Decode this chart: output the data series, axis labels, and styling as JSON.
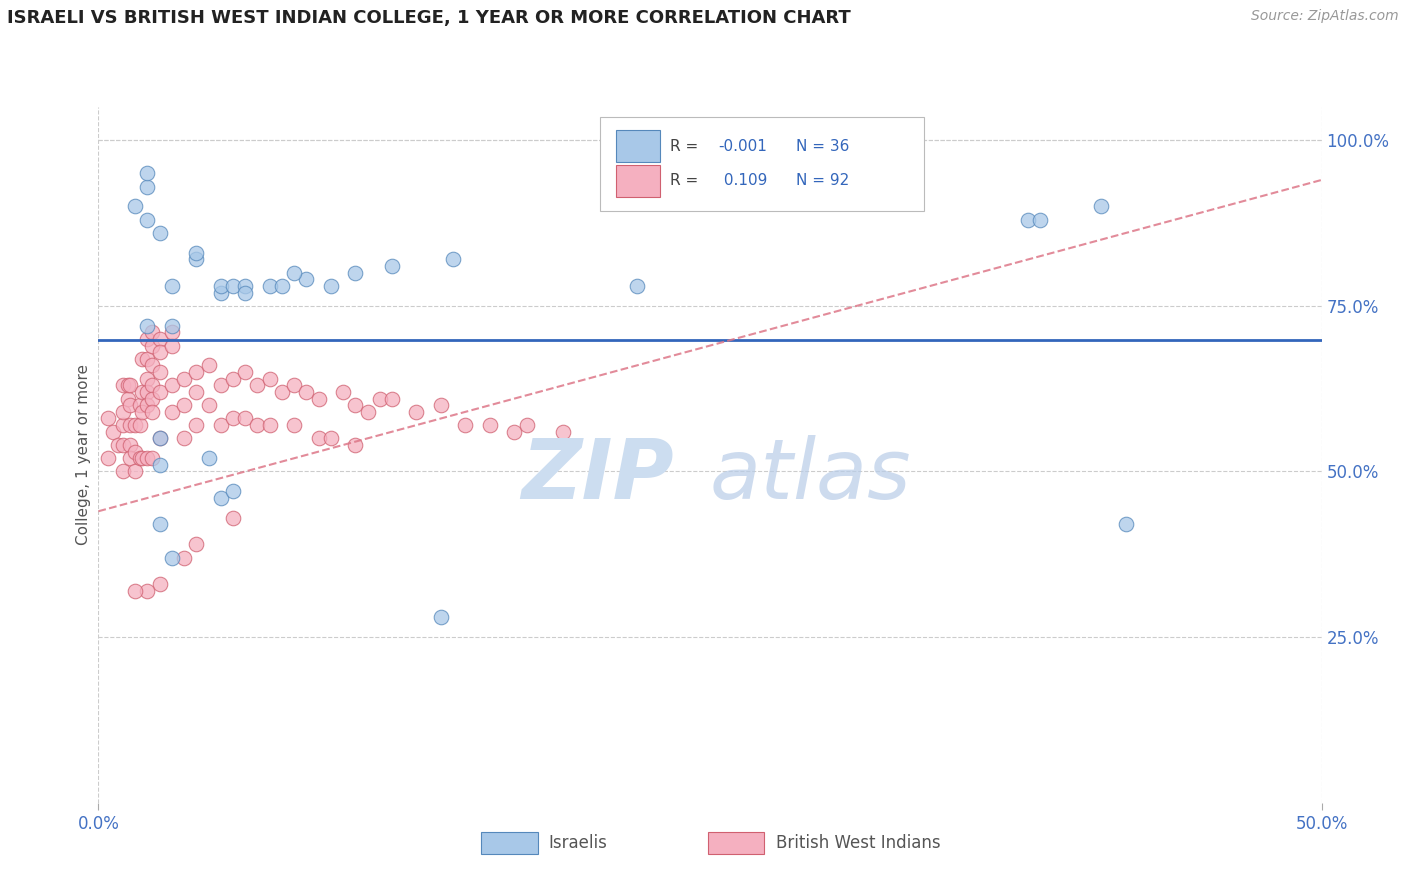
{
  "title": "ISRAELI VS BRITISH WEST INDIAN COLLEGE, 1 YEAR OR MORE CORRELATION CHART",
  "source": "Source: ZipAtlas.com",
  "ylabel": "College, 1 year or more",
  "xlim": [
    0.0,
    0.5
  ],
  "ylim": [
    0.0,
    1.05
  ],
  "yticks_right": [
    0.25,
    0.5,
    0.75,
    1.0
  ],
  "ytick_labels_right": [
    "25.0%",
    "50.0%",
    "75.0%",
    "100.0%"
  ],
  "legend_R1": "-0.001",
  "legend_N1": "36",
  "legend_R2": "0.109",
  "legend_N2": "92",
  "israeli_color": "#a8c8e8",
  "bwi_color": "#f5b0c0",
  "israeli_edge": "#5588bb",
  "bwi_edge": "#d06070",
  "trendline_israeli_color": "#3366bb",
  "trendline_bwi_color": "#dd7788",
  "grid_color": "#cccccc",
  "title_color": "#222222",
  "axis_label_color": "#4472c4",
  "israelis_label": "Israelis",
  "bwi_label": "British West Indians",
  "israeli_x": [
    0.02,
    0.04,
    0.05,
    0.02,
    0.03,
    0.04,
    0.05,
    0.055,
    0.06,
    0.07,
    0.075,
    0.06,
    0.085,
    0.095,
    0.08,
    0.105,
    0.12,
    0.145,
    0.22,
    0.38,
    0.385,
    0.41,
    0.015,
    0.02,
    0.02,
    0.025,
    0.03,
    0.025,
    0.025,
    0.025,
    0.03,
    0.045,
    0.05,
    0.055,
    0.14,
    0.42
  ],
  "israeli_y": [
    0.72,
    0.82,
    0.77,
    0.88,
    0.78,
    0.83,
    0.78,
    0.78,
    0.78,
    0.78,
    0.78,
    0.77,
    0.79,
    0.78,
    0.8,
    0.8,
    0.81,
    0.82,
    0.78,
    0.88,
    0.88,
    0.9,
    0.9,
    0.93,
    0.95,
    0.86,
    0.72,
    0.55,
    0.51,
    0.42,
    0.37,
    0.52,
    0.46,
    0.47,
    0.28,
    0.42
  ],
  "bwi_x": [
    0.004,
    0.004,
    0.006,
    0.008,
    0.01,
    0.01,
    0.01,
    0.01,
    0.01,
    0.012,
    0.012,
    0.013,
    0.013,
    0.013,
    0.013,
    0.013,
    0.015,
    0.015,
    0.015,
    0.017,
    0.017,
    0.017,
    0.018,
    0.018,
    0.018,
    0.018,
    0.02,
    0.02,
    0.02,
    0.02,
    0.02,
    0.02,
    0.022,
    0.022,
    0.022,
    0.022,
    0.022,
    0.022,
    0.022,
    0.025,
    0.025,
    0.025,
    0.025,
    0.025,
    0.03,
    0.03,
    0.03,
    0.03,
    0.035,
    0.035,
    0.035,
    0.04,
    0.04,
    0.04,
    0.045,
    0.045,
    0.05,
    0.05,
    0.055,
    0.055,
    0.06,
    0.06,
    0.065,
    0.065,
    0.07,
    0.07,
    0.075,
    0.08,
    0.08,
    0.085,
    0.09,
    0.09,
    0.095,
    0.1,
    0.105,
    0.11,
    0.115,
    0.12,
    0.13,
    0.14,
    0.15,
    0.16,
    0.17,
    0.175,
    0.19,
    0.105,
    0.055,
    0.035,
    0.04,
    0.025,
    0.02,
    0.015
  ],
  "bwi_y": [
    0.58,
    0.52,
    0.56,
    0.54,
    0.57,
    0.63,
    0.59,
    0.54,
    0.5,
    0.61,
    0.63,
    0.57,
    0.63,
    0.6,
    0.54,
    0.52,
    0.57,
    0.53,
    0.5,
    0.6,
    0.57,
    0.52,
    0.67,
    0.62,
    0.59,
    0.52,
    0.7,
    0.67,
    0.64,
    0.62,
    0.6,
    0.52,
    0.71,
    0.69,
    0.66,
    0.63,
    0.61,
    0.59,
    0.52,
    0.7,
    0.68,
    0.65,
    0.62,
    0.55,
    0.71,
    0.69,
    0.63,
    0.59,
    0.64,
    0.6,
    0.55,
    0.65,
    0.62,
    0.57,
    0.66,
    0.6,
    0.63,
    0.57,
    0.64,
    0.58,
    0.65,
    0.58,
    0.63,
    0.57,
    0.64,
    0.57,
    0.62,
    0.63,
    0.57,
    0.62,
    0.55,
    0.61,
    0.55,
    0.62,
    0.6,
    0.59,
    0.61,
    0.61,
    0.59,
    0.6,
    0.57,
    0.57,
    0.56,
    0.57,
    0.56,
    0.54,
    0.43,
    0.37,
    0.39,
    0.33,
    0.32,
    0.32
  ],
  "israeli_trendline_y_flat": 0.698,
  "bwi_trendline_x": [
    0.0,
    0.5
  ],
  "bwi_trendline_y": [
    0.44,
    0.94
  ]
}
